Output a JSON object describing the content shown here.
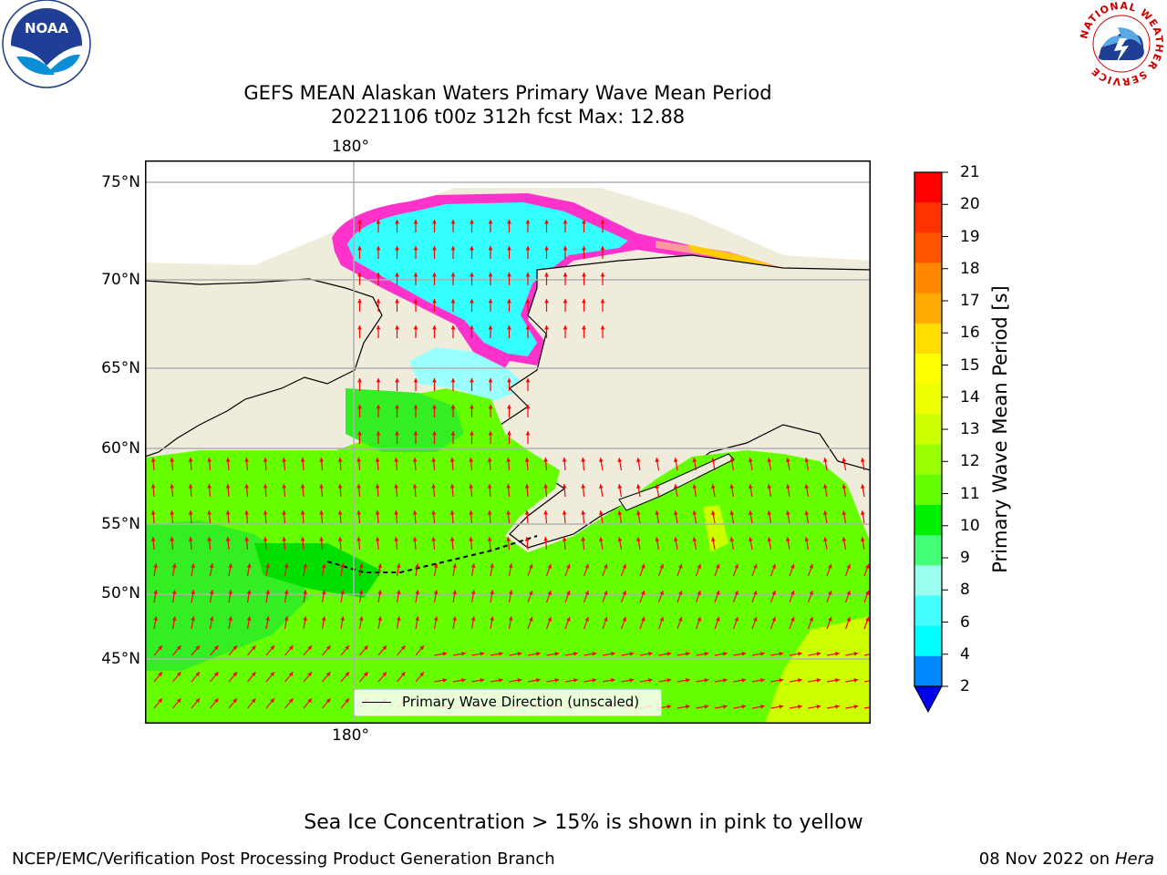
{
  "title": {
    "line1": "GEFS MEAN Alaskan Waters Primary Wave Mean Period",
    "line2": "20221106 t00z 312h fcst   Max: 12.88"
  },
  "map": {
    "lon_labels": [
      "180°",
      "180°"
    ],
    "lat_labels": [
      "75°N",
      "70°N",
      "65°N",
      "60°N",
      "55°N",
      "50°N",
      "45°N"
    ],
    "legend_label": "Primary Wave Direction (unscaled)",
    "colors": {
      "land": "#efecdc",
      "ocean_main": "#66ff00",
      "ocean_dark": "#00e000",
      "ocean_mid": "#33ee22",
      "ocean_high": "#ccff00",
      "arctic_water": "#33ffff",
      "arctic_light": "#99ffff",
      "ice_edge": "#ff33cc",
      "ice_yellow": "#ffcc00",
      "ice_salmon": "#ff9999",
      "arrow": "#ff0000",
      "grid": "#b0b0b0"
    }
  },
  "colorbar": {
    "label": "Primary Wave Mean Period [s]",
    "ticks": [
      "21",
      "20",
      "19",
      "18",
      "17",
      "16",
      "15",
      "14",
      "13",
      "12",
      "11",
      "10",
      "9",
      "8",
      "6",
      "4",
      "2"
    ],
    "colors": [
      "#ff0000",
      "#ff3300",
      "#ff5500",
      "#ff8800",
      "#ffaa00",
      "#ffdd00",
      "#ffff00",
      "#eeff00",
      "#ccff00",
      "#99ff00",
      "#66ff00",
      "#00ee00",
      "#44ff77",
      "#99ffee",
      "#44ffff",
      "#00ffff",
      "#0088ff"
    ],
    "under_color": "#0000ee"
  },
  "footer": {
    "note": "Sea Ice Concentration > 15% is shown in pink to yellow",
    "credit": "NCEP/EMC/Verification Post Processing Product Generation Branch",
    "date": "08 Nov 2022 on",
    "host": "Hera"
  },
  "logos": {
    "noaa_text": "NOAA",
    "nws_ring_text": "NATIONAL WEATHER SERVICE"
  }
}
